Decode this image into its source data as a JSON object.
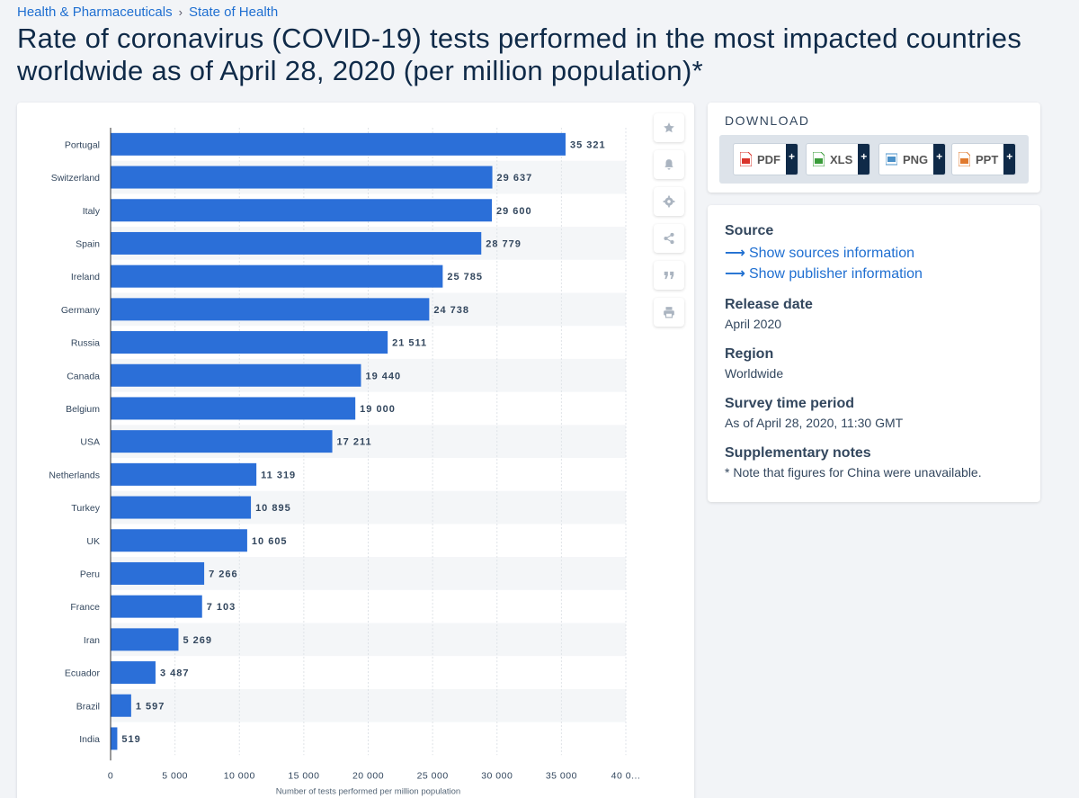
{
  "breadcrumb": {
    "items": [
      "Health & Pharmaceuticals",
      "State of Health"
    ],
    "separator": "›"
  },
  "title": "Rate of coronavirus (COVID-19) tests performed in the most impacted countries worldwide as of April 28, 2020 (per million population)*",
  "toolbar": {
    "icons": [
      "star-icon",
      "bell-icon",
      "gear-icon",
      "share-icon",
      "quote-icon",
      "print-icon"
    ]
  },
  "download": {
    "title": "DOWNLOAD",
    "buttons": [
      {
        "label": "PDF",
        "plus": "+",
        "color": "#d9342b"
      },
      {
        "label": "XLS",
        "plus": "+",
        "color": "#3a9c3a"
      },
      {
        "label": "PNG",
        "plus": "+",
        "color": "#4a90c8"
      },
      {
        "label": "PPT",
        "plus": "+",
        "color": "#e07a2e"
      }
    ]
  },
  "info": {
    "source_label": "Source",
    "source_link": "Show sources information",
    "publisher_link": "Show publisher information",
    "release_label": "Release date",
    "release_value": "April 2020",
    "region_label": "Region",
    "region_value": "Worldwide",
    "survey_label": "Survey time period",
    "survey_value": "As of April 28, 2020, 11:30 GMT",
    "notes_label": "Supplementary notes",
    "notes_value": "* Note that figures for China were unavailable."
  },
  "colors": {
    "bar": "#2b6fd8",
    "accent": "#1f6fd1",
    "dark": "#0f2a48"
  },
  "chart_data": {
    "type": "bar",
    "orientation": "horizontal",
    "categories": [
      "Portugal",
      "Switzerland",
      "Italy",
      "Spain",
      "Ireland",
      "Germany",
      "Russia",
      "Canada",
      "Belgium",
      "USA",
      "Netherlands",
      "Turkey",
      "UK",
      "Peru",
      "France",
      "Iran",
      "Ecuador",
      "Brazil",
      "India"
    ],
    "values": [
      35321,
      29637,
      29600,
      28779,
      25785,
      24738,
      21511,
      19440,
      19000,
      17211,
      11319,
      10895,
      10605,
      7266,
      7103,
      5269,
      3487,
      1597,
      519
    ],
    "value_labels": [
      "35 321",
      "29 637",
      "29 600",
      "28 779",
      "25 785",
      "24 738",
      "21 511",
      "19 440",
      "19 000",
      "17 211",
      "11 319",
      "10 895",
      "10 605",
      "7 266",
      "7 103",
      "5 269",
      "3 487",
      "1 597",
      "519"
    ],
    "xlim": [
      0,
      40000
    ],
    "xticks": [
      0,
      5000,
      10000,
      15000,
      20000,
      25000,
      30000,
      35000,
      40000
    ],
    "xtick_labels": [
      "0",
      "5 000",
      "10 000",
      "15 000",
      "20 000",
      "25 000",
      "30 000",
      "35 000",
      "40 0..."
    ],
    "xlabel": "Number of tests performed per million population",
    "ylabel": "",
    "grid": true
  }
}
